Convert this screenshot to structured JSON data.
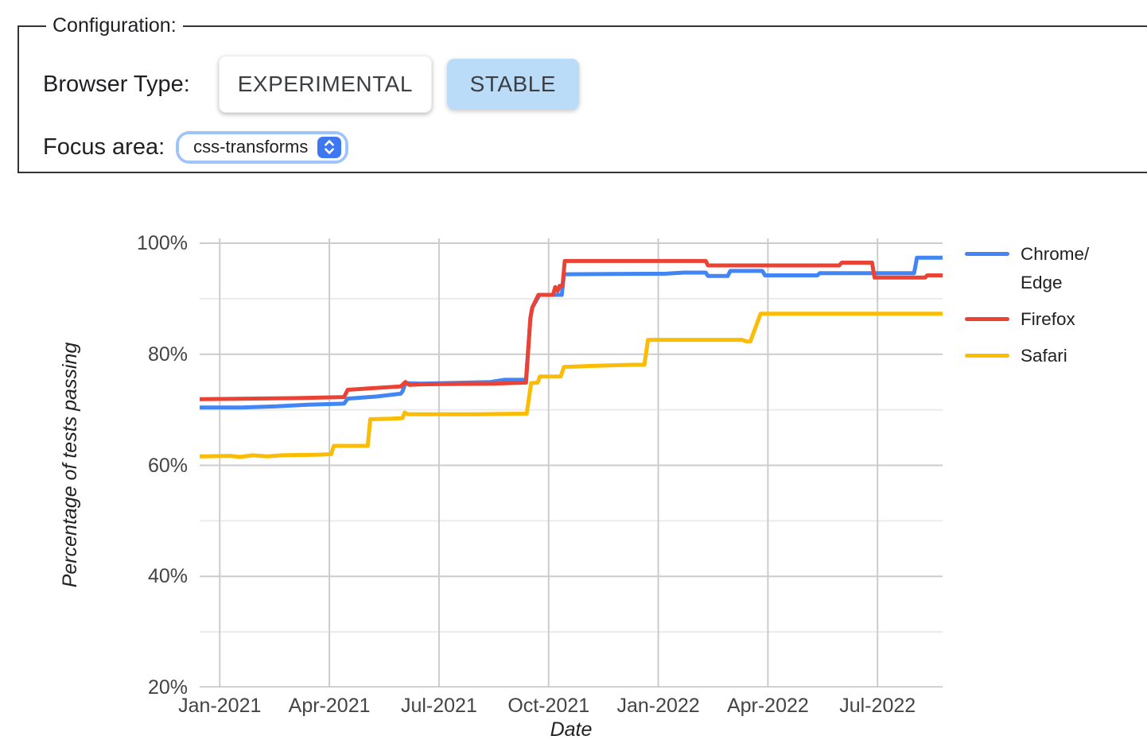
{
  "config": {
    "legend": "Configuration:",
    "browser_type_label": "Browser Type:",
    "buttons": [
      {
        "label": "EXPERIMENTAL",
        "selected": false
      },
      {
        "label": "STABLE",
        "selected": true
      }
    ],
    "focus_area_label": "Focus area:",
    "focus_area": {
      "value": "css-transforms"
    },
    "selected_button_color": "#bbdcf8"
  },
  "chart_data": {
    "type": "line",
    "title": "",
    "xlabel": "Date",
    "ylabel": "Percentage of tests passing",
    "x_unit": "months since Jan-2021",
    "xlim": [
      -0.55,
      19.78
    ],
    "ylim": [
      20,
      100
    ],
    "grid": true,
    "legend_position": "right",
    "colors": {
      "gridline": "#cccccc",
      "minor_gridline": "#ebebeb",
      "baseline": "#c2c2c2",
      "tick_text": "#444444"
    },
    "x_ticks": [
      {
        "x": 0,
        "label": "Jan-2021"
      },
      {
        "x": 3,
        "label": "Apr-2021"
      },
      {
        "x": 6,
        "label": "Jul-2021"
      },
      {
        "x": 9,
        "label": "Oct-2021"
      },
      {
        "x": 12,
        "label": "Jan-2022"
      },
      {
        "x": 15,
        "label": "Apr-2022"
      },
      {
        "x": 18,
        "label": "Jul-2022"
      }
    ],
    "y_ticks": [
      {
        "y": 100,
        "label": "100%"
      },
      {
        "y": 80,
        "label": "80%"
      },
      {
        "y": 60,
        "label": "60%"
      },
      {
        "y": 40,
        "label": "40%"
      },
      {
        "y": 20,
        "label": "20%"
      }
    ],
    "y_minor_gridlines": [
      90,
      70,
      50,
      30
    ],
    "series": [
      {
        "name": "Chrome/Edge",
        "legend_lines": [
          "Chrome/",
          "Edge"
        ],
        "color": "#4285F4",
        "points": [
          [
            -0.55,
            70.4
          ],
          [
            0.6,
            70.4
          ],
          [
            1.5,
            70.6
          ],
          [
            2.4,
            70.9
          ],
          [
            3.4,
            71.1
          ],
          [
            3.5,
            72.0
          ],
          [
            4.3,
            72.4
          ],
          [
            4.95,
            72.9
          ],
          [
            5.0,
            73.3
          ],
          [
            5.08,
            74.8
          ],
          [
            5.5,
            74.7
          ],
          [
            7.4,
            75.0
          ],
          [
            7.8,
            75.4
          ],
          [
            8.38,
            75.4
          ],
          [
            8.5,
            86.5
          ],
          [
            8.55,
            88.4
          ],
          [
            8.75,
            90.7
          ],
          [
            9.36,
            90.7
          ],
          [
            9.42,
            94.4
          ],
          [
            12.2,
            94.5
          ],
          [
            12.7,
            94.7
          ],
          [
            13.3,
            94.7
          ],
          [
            13.36,
            94.1
          ],
          [
            13.9,
            94.1
          ],
          [
            13.97,
            95.0
          ],
          [
            14.85,
            95.0
          ],
          [
            14.92,
            94.2
          ],
          [
            16.35,
            94.2
          ],
          [
            16.42,
            94.6
          ],
          [
            19.0,
            94.6
          ],
          [
            19.08,
            97.4
          ],
          [
            19.78,
            97.4
          ]
        ]
      },
      {
        "name": "Firefox",
        "legend_lines": [
          "Firefox"
        ],
        "color": "#EA4335",
        "points": [
          [
            -0.55,
            71.9
          ],
          [
            2.0,
            72.1
          ],
          [
            3.4,
            72.3
          ],
          [
            3.5,
            73.6
          ],
          [
            4.2,
            73.9
          ],
          [
            4.95,
            74.2
          ],
          [
            5.08,
            75.0
          ],
          [
            5.18,
            74.5
          ],
          [
            5.6,
            74.6
          ],
          [
            7.5,
            74.7
          ],
          [
            8.38,
            74.9
          ],
          [
            8.5,
            86.5
          ],
          [
            8.55,
            88.4
          ],
          [
            8.72,
            90.7
          ],
          [
            9.12,
            90.7
          ],
          [
            9.18,
            92.1
          ],
          [
            9.25,
            91.4
          ],
          [
            9.3,
            92.3
          ],
          [
            9.38,
            92.3
          ],
          [
            9.44,
            96.8
          ],
          [
            13.3,
            96.8
          ],
          [
            13.36,
            96.0
          ],
          [
            16.95,
            96.0
          ],
          [
            17.02,
            96.5
          ],
          [
            17.85,
            96.5
          ],
          [
            17.92,
            93.8
          ],
          [
            19.3,
            93.8
          ],
          [
            19.36,
            94.2
          ],
          [
            19.78,
            94.2
          ]
        ]
      },
      {
        "name": "Safari",
        "legend_lines": [
          "Safari"
        ],
        "color": "#FBBC04",
        "points": [
          [
            -0.55,
            61.6
          ],
          [
            0.3,
            61.7
          ],
          [
            0.55,
            61.5
          ],
          [
            0.9,
            61.8
          ],
          [
            1.3,
            61.6
          ],
          [
            1.7,
            61.8
          ],
          [
            2.6,
            61.9
          ],
          [
            3.05,
            62.0
          ],
          [
            3.12,
            63.5
          ],
          [
            4.05,
            63.5
          ],
          [
            4.12,
            68.3
          ],
          [
            4.7,
            68.4
          ],
          [
            5.0,
            68.5
          ],
          [
            5.06,
            69.5
          ],
          [
            5.15,
            69.2
          ],
          [
            7.0,
            69.2
          ],
          [
            8.4,
            69.3
          ],
          [
            8.52,
            74.8
          ],
          [
            8.7,
            74.9
          ],
          [
            8.76,
            76.0
          ],
          [
            9.33,
            76.0
          ],
          [
            9.42,
            77.7
          ],
          [
            10.2,
            77.9
          ],
          [
            11.3,
            78.1
          ],
          [
            11.62,
            78.1
          ],
          [
            11.72,
            82.6
          ],
          [
            14.3,
            82.6
          ],
          [
            14.42,
            82.3
          ],
          [
            14.52,
            82.3
          ],
          [
            14.8,
            87.3
          ],
          [
            19.78,
            87.3
          ]
        ]
      }
    ]
  }
}
